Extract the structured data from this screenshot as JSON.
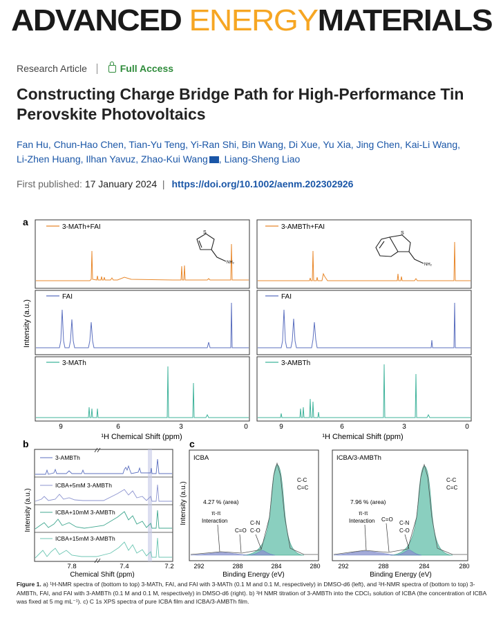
{
  "journal": {
    "part1": "ADVANCED ",
    "part2": "ENERGY",
    "part3": "MATERIALS"
  },
  "article_type": "Research Article",
  "access": "Full Access",
  "title": "Constructing Charge Bridge Path for High-Performance Tin Perovskite Photovoltaics",
  "authors_line1": "Fan Hu, Chun-Hao Chen, Tian-Yu Teng, Yi-Ran Shi, Bin Wang, Di Xue, Yu Xia, Jing Chen, Kai-Li Wang,",
  "authors_line2a": "Li-Zhen Huang, Ilhan Yavuz, Zhao-Kui Wang",
  "authors_line2b": ", Liang-Sheng Liao",
  "published_label": "First published:",
  "published_date": "17 January 2024",
  "doi": "https://doi.org/10.1002/aenm.202302926",
  "colors": {
    "orange": "#e8872a",
    "blue": "#5b6fbf",
    "teal": "#3fb39b",
    "brand_black": "#1a1a1a",
    "brand_orange": "#f6a623",
    "link": "#1a56a7",
    "access_green": "#2e8b3a"
  },
  "figure": {
    "panel_a": "a",
    "panel_b": "b",
    "panel_c": "c",
    "a_ylabel": "Intensity (a.u.)",
    "a_xlabel": "¹H Chemical Shift (ppm)",
    "a_ticks": [
      "9",
      "6",
      "3",
      "0"
    ],
    "a_left_labels": [
      "3-MATh+FAI",
      "FAI",
      "3-MATh"
    ],
    "a_right_labels": [
      "3-AMBTh+FAI",
      "FAI",
      "3-AMBTh"
    ],
    "struct_S": "S",
    "struct_NH2": "NH₂",
    "b_ylabel": "Intensity (a.u.)",
    "b_xlabel": "Chemical Shift (ppm)",
    "b_ticks": [
      "7.8",
      "7.4",
      "7.2"
    ],
    "b_labels": [
      "3-AMBTh",
      "ICBA+5mM 3-AMBTh",
      "ICBA+10mM 3-AMBTh",
      "ICBA+15mM 3-AMBTh"
    ],
    "c_ylabel": "Intensity (a.u.)",
    "c_xlabel": "Binding Energy (eV)",
    "c_ticks": [
      "292",
      "288",
      "284",
      "280"
    ],
    "c_left_title": "ICBA",
    "c_right_title": "ICBA/3-AMBTh",
    "c_left_area": "4.27 % (area)",
    "c_right_area": "7.96 % (area)",
    "c_pi": "π-π",
    "c_interaction": "Interaction",
    "c_co": "C=O",
    "c_cn": "C-N",
    "c_co2": "C-O",
    "c_cc1": "C-C",
    "c_cc2": "C=C"
  },
  "caption": "a) ¹H-NMR spectra of (bottom to top) 3-MATh, FAI, and FAI with 3-MATh (0.1 M and 0.1 M, respectively) in DMSO-d6 (left), and ¹H-NMR spectra of (bottom to top) 3-AMBTh, FAI, and FAI with 3-AMBTh (0.1 M and 0.1 M, respectively) in DMSO-d6 (right). b) ¹H NMR titration of 3-AMBTh into the CDCl₃ solution of ICBA (the concentration of ICBA was fixed at 5 mg mL⁻¹). c) C 1s XPS spectra of pure ICBA film and ICBA/3-AMBTh film.",
  "caption_label": "Figure 1."
}
